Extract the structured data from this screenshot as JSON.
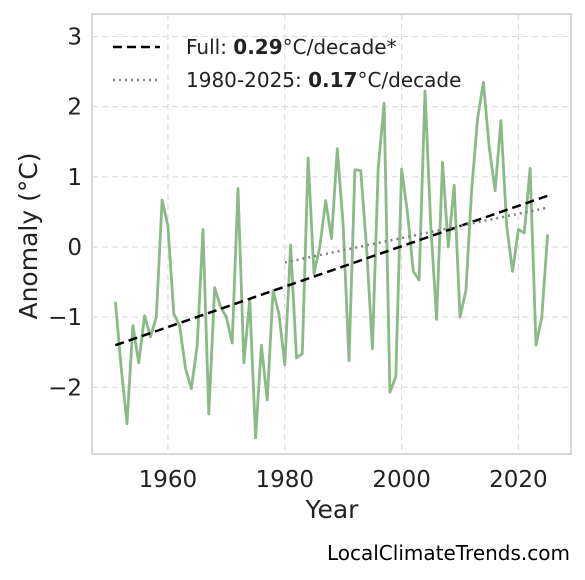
{
  "chart_data": {
    "type": "line",
    "xlabel": "Year",
    "ylabel": "Anomaly (°C)",
    "xlim": [
      1947,
      2029
    ],
    "ylim": [
      -2.95,
      3.32
    ],
    "xticks": [
      1960,
      1980,
      2000,
      2020
    ],
    "xtick_labels": [
      "1960",
      "1980",
      "2000",
      "2020"
    ],
    "yticks": [
      -2,
      -1,
      0,
      1,
      2,
      3
    ],
    "ytick_labels": [
      "−2",
      "−1",
      "0",
      "1",
      "2",
      "3"
    ],
    "grid": true,
    "legend_position": "top-left",
    "series": [
      {
        "color": "#8aba86",
        "x": [
          1951,
          1952,
          1953,
          1954,
          1955,
          1956,
          1957,
          1958,
          1959,
          1960,
          1961,
          1962,
          1963,
          1964,
          1965,
          1966,
          1967,
          1968,
          1969,
          1970,
          1971,
          1972,
          1973,
          1974,
          1975,
          1976,
          1977,
          1978,
          1979,
          1980,
          1981,
          1982,
          1983,
          1984,
          1985,
          1986,
          1987,
          1988,
          1989,
          1990,
          1991,
          1992,
          1993,
          1994,
          1995,
          1996,
          1997,
          1998,
          1999,
          2000,
          2001,
          2002,
          2003,
          2004,
          2005,
          2006,
          2007,
          2008,
          2009,
          2010,
          2011,
          2012,
          2013,
          2014,
          2015,
          2016,
          2017,
          2018,
          2019,
          2020,
          2021,
          2022,
          2023,
          2024,
          2025
        ],
        "values": [
          -0.78,
          -1.72,
          -2.52,
          -1.12,
          -1.65,
          -0.98,
          -1.28,
          -1.0,
          0.67,
          0.3,
          -0.95,
          -1.12,
          -1.73,
          -2.02,
          -1.42,
          0.25,
          -2.38,
          -0.58,
          -0.85,
          -1.0,
          -1.37,
          0.83,
          -1.65,
          -0.75,
          -2.72,
          -1.4,
          -2.18,
          -0.62,
          -0.95,
          -1.68,
          0.03,
          -1.58,
          -1.52,
          1.27,
          -0.38,
          0.0,
          0.66,
          0.12,
          1.4,
          0.3,
          -1.62,
          1.1,
          1.09,
          0.0,
          -1.45,
          1.12,
          2.05,
          -2.07,
          -1.85,
          1.11,
          0.5,
          -0.35,
          -0.47,
          2.22,
          0.3,
          -1.03,
          1.21,
          0.0,
          0.88,
          -1.0,
          -0.62,
          0.82,
          1.82,
          2.35,
          1.42,
          0.8,
          1.8,
          0.3,
          -0.35,
          0.25,
          0.2,
          1.12,
          -1.4,
          -1.0,
          0.18
        ]
      }
    ],
    "trend_lines": [
      {
        "name": "Full",
        "rate": "0.29",
        "unit": "°C/decade*",
        "style": "dashed",
        "color": "#000000",
        "x": [
          1951,
          2025
        ],
        "y": [
          -1.4,
          0.73
        ]
      },
      {
        "name": "1980-2025",
        "rate": "0.17",
        "unit": "°C/decade",
        "style": "dotted",
        "color": "#808080",
        "x": [
          1980,
          2025
        ],
        "y": [
          -0.22,
          0.56
        ]
      }
    ]
  },
  "legend": {
    "items": [
      {
        "prefix": "Full: ",
        "value": "0.29",
        "suffix": "°C/decade*"
      },
      {
        "prefix": "1980-2025: ",
        "value": "0.17",
        "suffix": "°C/decade"
      }
    ]
  },
  "footer": {
    "credit": "LocalClimateTrends.com"
  }
}
